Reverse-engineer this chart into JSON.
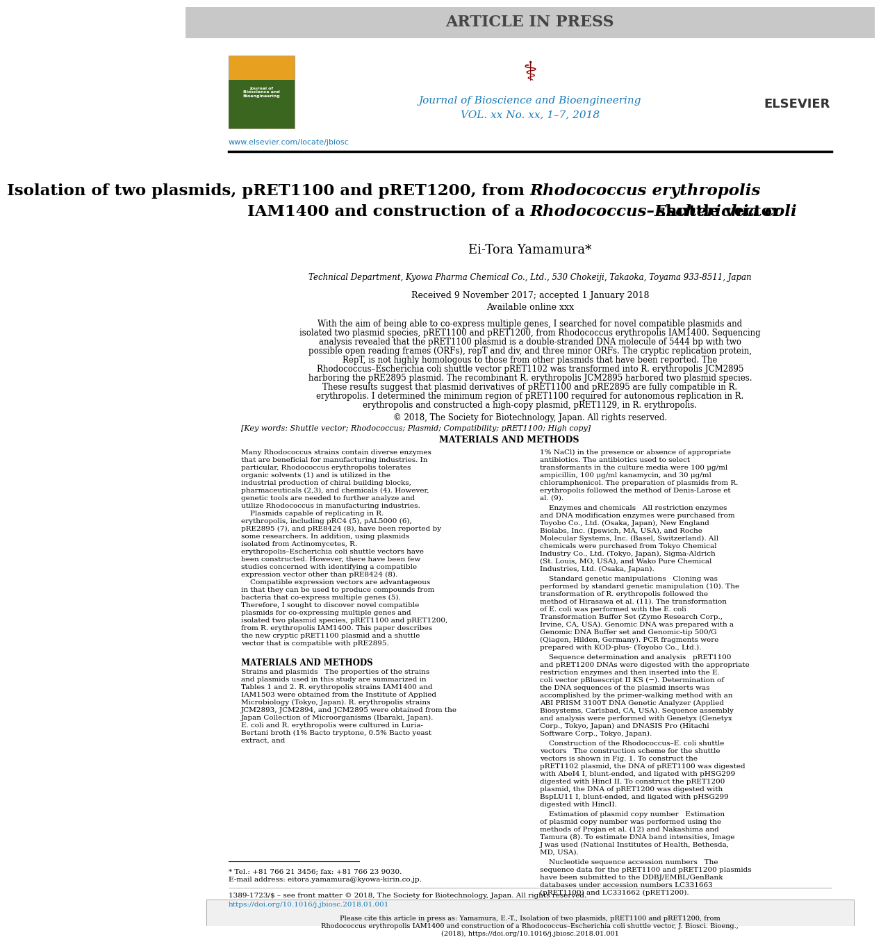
{
  "article_in_press_text": "ARTICLE IN PRESS",
  "journal_name": "Journal of Bioscience and Bioengineering",
  "journal_vol": "VOL. xx No. xx, 1–7, 2018",
  "website": "www.elsevier.com/locate/jbiosc",
  "title_line1": "Isolation of two plasmids, pRET1100 and pRET1200, from ",
  "title_italic1": "Rhodococcus erythropolis",
  "title_line2": "IAM1400 and construction of a ",
  "title_italic2": "Rhodococcus–Escherichia coli",
  "title_line3": " shuttle vector",
  "author": "Ei-Tora Yamamura",
  "affiliation": "Technical Department, Kyowa Pharma Chemical Co., Ltd., 530 Chokeiji, Takaoka, Toyama 933-8511, Japan",
  "received": "Received 9 November 2017; accepted 1 January 2018",
  "available": "Available online xxx",
  "abstract": "With the aim of being able to co-express multiple genes, I searched for novel compatible plasmids and isolated two plasmid species, pRET1100 and pRET1200, from Rhodococcus erythropolis IAM1400. Sequencing analysis revealed that the pRET1100 plasmid is a double-stranded DNA molecule of 5444 bp with two possible open reading frames (ORFs), repT and div, and three minor ORFs. The cryptic replication protein, RepT, is not highly homologous to those from other plasmids that have been reported. The Rhodococcus–Escherichia coli shuttle vector pRET1102 was transformed into R. erythropolis JCM2895 harboring the pRE2895 plasmid. The recombinant R. erythropolis JCM2895 harbored two plasmid species. These results suggest that plasmid derivatives of pRET1100 and pRE2895 are fully compatible in R. erythropolis. I determined the minimum region of pRET1100 required for autonomous replication in R. erythropolis and constructed a high-copy plasmid, pRET1129, in R. erythropolis.",
  "copyright": "© 2018, The Society for Biotechnology, Japan. All rights reserved.",
  "keywords": "[Key words: Shuttle vector; Rhodococcus; Plasmid; Compatibility; pRET1100; High copy]",
  "intro_col1": "Many Rhodococcus strains contain diverse enzymes that are beneficial for manufacturing industries. In particular, Rhodococcus erythropolis tolerates organic solvents (1) and is utilized in the industrial production of chiral building blocks, pharmaceuticals (2,3), and chemicals (4). However, genetic tools are needed to further analyze and utilize Rhodococcus in manufacturing industries.\n    Plasmids capable of replicating in R. erythropolis, including pRC4 (5), pAL5000 (6), pRE2895 (7), and pRE8424 (8), have been reported by some researchers. In addition, using plasmids isolated from Actinomycetes, R. erythropolis–Escherichia coli shuttle vectors have been constructed. However, there have been few studies concerned with identifying a compatible expression vector other than pRE8424 (8).\n    Compatible expression vectors are advantageous in that they can be used to produce compounds from bacteria that co-express multiple genes (5). Therefore, I sought to discover novel compatible plasmids for co-expressing multiple genes and isolated two plasmid species, pRET1100 and pRET1200, from R. erythropolis IAM1400. This paper describes the new cryptic pRET1100 plasmid and a shuttle vector that is compatible with pRE2895.",
  "materials_header": "MATERIALS AND METHODS",
  "materials_col1": "Strains and plasmids   The properties of the strains and plasmids used in this study are summarized in Tables 1 and 2. R. erythropolis strains IAM1400 and IAM1503 were obtained from the Institute of Applied Microbiology (Tokyo, Japan). R. erythropolis strains JCM2893, JCM2894, and JCM2895 were obtained from the Japan Collection of Microorganisms (Ibaraki, Japan). E. coli and R. erythropolis were cultured in Luria-Bertani broth (1% Bacto tryptone, 0.5% Bacto yeast extract, and",
  "intro_col2": "1% NaCl) in the presence or absence of appropriate antibiotics. The antibiotics used to select transformants in the culture media were 100 μg/ml ampicillin, 100 μg/ml kanamycin, and 30 μg/ml chloramphenicol. The preparation of plasmids from R. erythropolis followed the method of Denis-Larose et al. (9).\n    Enzymes and chemicals   All restriction enzymes and DNA modification enzymes were purchased from Toyobo Co., Ltd. (Osaka, Japan), New England Biolabs, Inc. (Ipswich, MA, USA), and Roche Molecular Systems, Inc. (Basel, Switzerland). All chemicals were purchased from Tokyo Chemical Industry Co., Ltd. (Tokyo, Japan), Sigma-Aldrich (St. Louis, MO, USA), and Wako Pure Chemical Industries, Ltd. (Osaka, Japan).\n    Standard genetic manipulations   Cloning was performed by standard genetic manipulation (10). The transformation of R. erythropolis followed the method of Hirasawa et al. (11). The transformation of E. coli was performed with the E. coli Transformation Buffer Set (Zymo Research Corp., Irvine, CA, USA). Genomic DNA was prepared with a Genomic DNA Buffer set and Genomic-tip 500/G (Qiagen, Hilden, Germany). PCR fragments were prepared with KOD-plus- (Toyobo Co., Ltd.).\n    Sequence determination and analysis   pRET1100 and pRET1200 DNAs were digested with the appropriate restriction enzymes and then inserted into the E. coli vector pBluescript II KS (−). Determination of the DNA sequences of the plasmid inserts was accomplished by the primer-walking method with an ABI PRISM 3100T DNA Genetic Analyzer (Applied Biosystems, Carlsbad, CA, USA). Sequence assembly and analysis were performed with Genetyx (Genetyx Corp., Tokyo, Japan) and DNASIS Pro (Hitachi Software Corp., Tokyo, Japan).\n    Construction of the Rhodococcus–E. coli shuttle vectors   The construction scheme for the shuttle vectors is shown in Fig. 1. To construct the pRET1102 plasmid, the DNA of pRET1100 was digested with AbeI4 I, blunt-ended, and ligated with pHSG299 digested with HincI II. To construct the pRET1200 plasmid, the DNA of pRET1200 was digested with BspLU11 I, blunt-ended, and ligated with pHSG299 digested with HincII.\n    Estimation of plasmid copy number   Estimation of plasmid copy number was performed using the methods of Projan et al. (12) and Nakashima and Tamura (8). To estimate DNA band intensities, Image J was used (National Institutes of Health, Bethesda, MD, USA).\n    Nucleotide sequence accession numbers   The sequence data for the pRET1100 and pRET1200 plasmids have been submitted to the DDBJ/EMBL/GenBank databases under accession numbers LC331663 (pRET1100) and LC331662 (pRET1200).",
  "footnote_tel": "* Tel.: +81 766 21 3456; fax: +81 766 23 9030.",
  "footnote_email": "E-mail address: eitora.yamamura@kyowa-kirin.co.jp.",
  "bottom_issn": "1389-1723/$ – see front matter © 2018, The Society for Biotechnology, Japan. All rights reserved.",
  "bottom_doi": "https://doi.org/10.1016/j.jbiosc.2018.01.001",
  "cite_text": "Please cite this article in press as: Yamamura, E.-T., Isolation of two plasmids, pRET1100 and pRET1200, from Rhodococcus erythropolis IAM1400 and construction of a Rhodococcus–Escherichia coli shuttle vector, J. Biosci. Bioeng., (2018), https://doi.org/10.1016/j.jbiosc.2018.01.001",
  "bg_color": "#ffffff",
  "header_bg": "#cccccc",
  "journal_color": "#1a7bb8",
  "link_color": "#1a7bb8",
  "text_color": "#000000",
  "separator_color": "#000000"
}
